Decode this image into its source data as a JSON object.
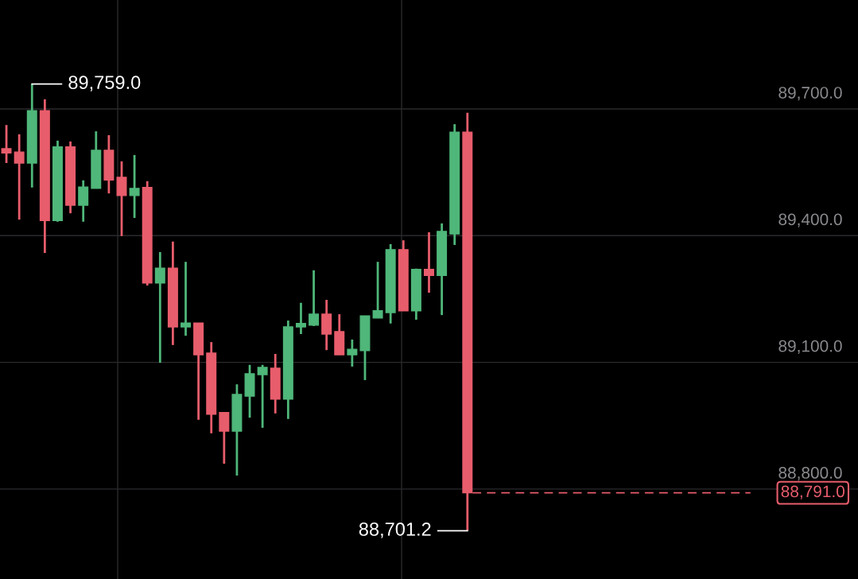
{
  "chart_data": {
    "type": "candlestick",
    "categories": [
      null,
      null,
      null,
      null,
      null,
      null,
      null,
      null,
      null,
      null,
      null,
      null,
      null,
      null,
      null,
      null,
      null,
      null,
      null,
      null,
      null,
      null,
      null,
      null,
      null,
      null,
      null,
      null,
      null,
      null,
      null,
      null,
      null,
      null,
      null,
      null,
      null,
      null,
      null,
      null,
      null,
      null,
      null,
      null,
      null,
      null,
      null,
      null,
      null,
      null,
      null,
      null,
      null,
      null,
      null,
      null,
      null,
      null,
      null,
      null,
      null,
      null,
      null,
      null,
      null,
      null,
      null
    ],
    "ohlc": [
      [
        89606,
        89662,
        89572,
        89596
      ],
      [
        89598,
        89640,
        89438,
        89572
      ],
      [
        89572,
        89759,
        89514,
        89696
      ],
      [
        89696,
        89723,
        89359,
        89436
      ],
      [
        89436,
        89625,
        89433,
        89610
      ],
      [
        89610,
        89623,
        89453,
        89472
      ],
      [
        89472,
        89531,
        89433,
        89515
      ],
      [
        89512,
        89647,
        89512,
        89602
      ],
      [
        89602,
        89638,
        89500,
        89532
      ],
      [
        89538,
        89576,
        89399,
        89495
      ],
      [
        89495,
        89591,
        89442,
        89512
      ],
      [
        89514,
        89529,
        89282,
        89288
      ],
      [
        89288,
        89361,
        89099,
        89323
      ],
      [
        89323,
        89386,
        89141,
        89184
      ],
      [
        89184,
        89338,
        89163,
        89193
      ],
      [
        89193,
        89193,
        88964,
        89118
      ],
      [
        89122,
        89148,
        88932,
        88977
      ],
      [
        88981,
        88981,
        88860,
        88937
      ],
      [
        88937,
        89048,
        88832,
        89024
      ],
      [
        89020,
        89094,
        88969,
        89073
      ],
      [
        89071,
        89094,
        88945,
        89088
      ],
      [
        89086,
        89120,
        88979,
        89013
      ],
      [
        89013,
        89199,
        88966,
        89184
      ],
      [
        89184,
        89241,
        89167,
        89192
      ],
      [
        89188,
        89318,
        89186,
        89214
      ],
      [
        89214,
        89248,
        89129,
        89167
      ],
      [
        89173,
        89214,
        89118,
        89118
      ],
      [
        89118,
        89154,
        89090,
        89131
      ],
      [
        89128,
        89210,
        89058,
        89210
      ],
      [
        89205,
        89338,
        89205,
        89222
      ],
      [
        89218,
        89380,
        89192,
        89367
      ],
      [
        89367,
        89389,
        89222,
        89222
      ],
      [
        89222,
        89322,
        89201,
        89320
      ],
      [
        89320,
        89408,
        89265,
        89306
      ],
      [
        89306,
        89429,
        89212,
        89410
      ],
      [
        89404,
        89664,
        89378,
        89645
      ],
      [
        89645,
        89691,
        88701.2,
        88791.0
      ],
      null,
      null,
      null,
      null,
      null,
      null,
      null,
      null,
      null,
      null,
      null,
      null,
      null,
      null,
      null,
      null,
      null,
      null,
      null,
      null,
      null,
      null,
      null,
      null,
      null,
      null,
      null,
      null,
      null,
      null
    ],
    "colors": [
      "#e85d6c",
      "#e85d6c",
      "#4fb77a",
      "#e85d6c",
      "#4fb77a",
      "#e85d6c",
      "#4fb77a",
      "#4fb77a",
      "#e85d6c",
      "#e85d6c",
      "#4fb77a",
      "#e85d6c",
      "#4fb77a",
      "#e85d6c",
      "#4fb77a",
      "#e85d6c",
      "#e85d6c",
      "#e85d6c",
      "#4fb77a",
      "#4fb77a",
      "#4fb77a",
      "#e85d6c",
      "#4fb77a",
      "#4fb77a",
      "#4fb77a",
      "#e85d6c",
      "#e85d6c",
      "#4fb77a",
      "#4fb77a",
      "#4fb77a",
      "#4fb77a",
      "#e85d6c",
      "#4fb77a",
      "#e85d6c",
      "#4fb77a",
      "#4fb77a",
      "#e85d6c",
      null,
      null,
      null,
      null,
      null,
      null,
      null,
      null,
      null,
      null,
      null,
      null,
      null,
      null,
      null,
      null,
      null,
      null,
      null,
      null,
      null,
      null,
      null,
      null,
      null,
      null,
      null,
      null,
      null,
      null
    ],
    "ylim": [
      88587,
      89958
    ],
    "yticks": [
      {
        "value": 88800,
        "label": "88,800.0"
      },
      {
        "value": 89100,
        "label": "89,100.0"
      },
      {
        "value": 89400,
        "label": "89,400.0"
      },
      {
        "value": 89700,
        "label": "89,700.0"
      }
    ],
    "tick_labels": "y",
    "grid": true,
    "ref_lines": [
      {
        "axis": "y",
        "value": 88791.0,
        "label": "88,791.0",
        "color": "#e85d6c",
        "line_style": "dashed"
      }
    ],
    "annotations": [
      "89,759.0",
      "88,701.2"
    ]
  }
}
